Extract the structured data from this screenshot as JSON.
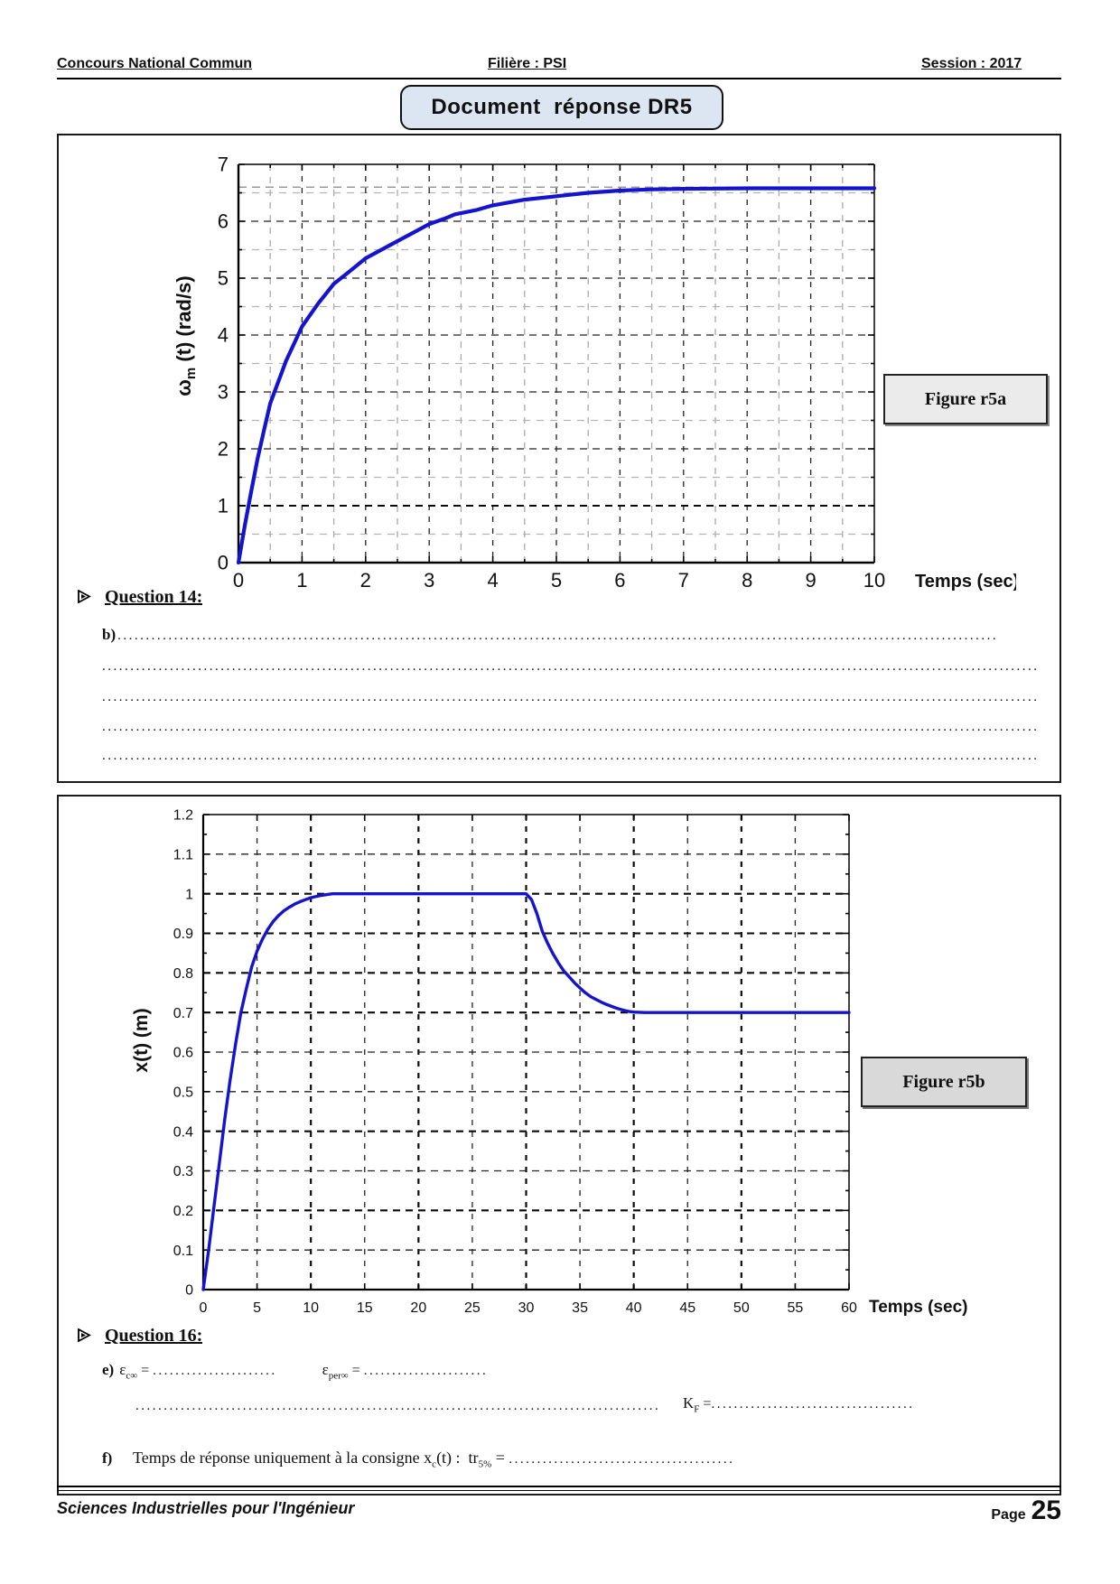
{
  "header": {
    "left": "Concours National Commun",
    "center": "Filière : PSI",
    "right": "Session : 2017"
  },
  "title_box": {
    "label": "Document  réponse DR5",
    "fill": "#dce6f2"
  },
  "figures": {
    "a": {
      "label": "Figure r5a"
    },
    "b": {
      "label": "Figure r5b"
    }
  },
  "question14": {
    "bullet": "➢",
    "title": "Question 14:",
    "item_label": "b)",
    "item_dots": "............................................................................................................................................................",
    "answer_lines": [
      "......................................................................................................................................................................",
      "......................................................................................................................................................................",
      "......................................................................................................................................................................",
      "......................................................................................................................................................................"
    ]
  },
  "question16": {
    "bullet": "➢",
    "title": "Question 16:",
    "e_label": "e)",
    "eps1_base": "ε",
    "eps1_sub": "c∞",
    "eq": " = ",
    "e_dots1": "......................",
    "eps2_base": "ε",
    "eps2_sub": "per∞",
    "e_dots2": "......................",
    "k_lead_dots": ".............................................................................................",
    "k_base": "K",
    "k_sub": "F",
    "k_eq": " =",
    "k_dots": "....................................",
    "f_label": "f)",
    "f_text1": "Temps de réponse uniquement à la consigne x",
    "f_sub1": "c",
    "f_text2": "(t) :  tr",
    "f_sub2": "5%",
    "f_eq": " = ",
    "f_dots": "........................................"
  },
  "footer": {
    "left": "Sciences Industrielles pour l'Ingénieur",
    "page_word": "Page",
    "page_number": "25"
  },
  "chart_data": [
    {
      "id": "figure-r5a",
      "type": "line",
      "title": "Figure r5a",
      "xlabel": "Temps  (sec)",
      "ylabel": "ωm(t)  (rad/s)",
      "ylabel_parts": [
        {
          "t": "ω"
        },
        {
          "t": "m",
          "sub": true
        },
        {
          "t": " (t)  (rad/s)"
        }
      ],
      "xlim": [
        0,
        10
      ],
      "ylim": [
        0,
        7
      ],
      "x_major": 1,
      "x_minor": 0.5,
      "x_minor_grid": true,
      "y_major": 1,
      "y_minor": 0.5,
      "y_minor_grid": true,
      "x_tick_labels": [
        "0",
        "1",
        "2",
        "3",
        "4",
        "5",
        "6",
        "7",
        "8",
        "9",
        "10"
      ],
      "y_tick_labels": [
        "0",
        "1",
        "2",
        "3",
        "4",
        "5",
        "6",
        "7"
      ],
      "y_bold": [
        1
      ],
      "extra_hlines": [
        6.6
      ],
      "grid": true,
      "legend": "none",
      "series": [
        {
          "name": "ωm(t)",
          "color": "#1414cf",
          "points": [
            [
              0,
              0
            ],
            [
              0.1,
              0.65
            ],
            [
              0.2,
              1.25
            ],
            [
              0.3,
              1.82
            ],
            [
              0.4,
              2.32
            ],
            [
              0.5,
              2.8
            ],
            [
              0.75,
              3.55
            ],
            [
              1,
              4.15
            ],
            [
              1.25,
              4.55
            ],
            [
              1.5,
              4.9
            ],
            [
              1.75,
              5.12
            ],
            [
              2,
              5.35
            ],
            [
              2.25,
              5.5
            ],
            [
              2.5,
              5.65
            ],
            [
              2.75,
              5.8
            ],
            [
              3,
              5.95
            ],
            [
              3.25,
              6.05
            ],
            [
              3.4,
              6.12
            ],
            [
              3.75,
              6.2
            ],
            [
              4,
              6.28
            ],
            [
              4.5,
              6.38
            ],
            [
              5,
              6.44
            ],
            [
              5.5,
              6.5
            ],
            [
              6,
              6.54
            ],
            [
              6.5,
              6.56
            ],
            [
              7,
              6.57
            ],
            [
              8,
              6.58
            ],
            [
              9,
              6.58
            ],
            [
              10,
              6.58
            ]
          ]
        }
      ]
    },
    {
      "id": "figure-r5b",
      "type": "line",
      "title": "Figure r5b",
      "xlabel": "Temps  (sec)",
      "ylabel": "x(t)  (m)",
      "ylabel_parts": [
        {
          "t": "x(t)  (m)"
        }
      ],
      "xlim": [
        0,
        60
      ],
      "ylim": [
        0,
        1.2
      ],
      "x_major": 5,
      "x_minor": null,
      "x_minor_grid": false,
      "y_major": 0.1,
      "y_minor": 0.05,
      "y_minor_grid": false,
      "x_tick_labels": [
        "0",
        "5",
        "10",
        "15",
        "20",
        "25",
        "30",
        "35",
        "40",
        "45",
        "50",
        "55",
        "60"
      ],
      "y_tick_labels": [
        "0",
        "0.1",
        "0.2",
        "0.3",
        "0.4",
        "0.5",
        "0.6",
        "0.7",
        "0.8",
        "0.9",
        "1",
        "1.1",
        "1.2"
      ],
      "x_bold_every": 10,
      "y_bold": [
        1.0,
        0.9,
        0.8,
        0.7,
        0.4,
        0.2
      ],
      "extra_hlines": [],
      "grid": true,
      "legend": "none",
      "series": [
        {
          "name": "x(t)",
          "color": "#1414cf",
          "points": [
            [
              0,
              0
            ],
            [
              0.5,
              0.1
            ],
            [
              1,
              0.21
            ],
            [
              1.5,
              0.32
            ],
            [
              2,
              0.43
            ],
            [
              2.5,
              0.53
            ],
            [
              3,
              0.62
            ],
            [
              3.5,
              0.7
            ],
            [
              4,
              0.76
            ],
            [
              4.5,
              0.815
            ],
            [
              5,
              0.855
            ],
            [
              5.5,
              0.885
            ],
            [
              6,
              0.91
            ],
            [
              6.5,
              0.93
            ],
            [
              7,
              0.945
            ],
            [
              7.5,
              0.957
            ],
            [
              8,
              0.966
            ],
            [
              8.5,
              0.974
            ],
            [
              9,
              0.98
            ],
            [
              9.5,
              0.985
            ],
            [
              10,
              0.99
            ],
            [
              11,
              0.996
            ],
            [
              12,
              1.0
            ],
            [
              15,
              1.0
            ],
            [
              20,
              1.0
            ],
            [
              25,
              1.0
            ],
            [
              30,
              1.0
            ],
            [
              30.5,
              0.985
            ],
            [
              31,
              0.95
            ],
            [
              31.5,
              0.905
            ],
            [
              32,
              0.875
            ],
            [
              32.5,
              0.848
            ],
            [
              33,
              0.825
            ],
            [
              33.5,
              0.805
            ],
            [
              34,
              0.79
            ],
            [
              34.5,
              0.775
            ],
            [
              35,
              0.762
            ],
            [
              35.5,
              0.75
            ],
            [
              36,
              0.74
            ],
            [
              36.5,
              0.733
            ],
            [
              37,
              0.726
            ],
            [
              37.5,
              0.72
            ],
            [
              38,
              0.715
            ],
            [
              38.5,
              0.71
            ],
            [
              39,
              0.706
            ],
            [
              39.5,
              0.703
            ],
            [
              40,
              0.701
            ],
            [
              41,
              0.7
            ],
            [
              45,
              0.7
            ],
            [
              50,
              0.7
            ],
            [
              55,
              0.7
            ],
            [
              60,
              0.7
            ]
          ]
        }
      ]
    }
  ]
}
